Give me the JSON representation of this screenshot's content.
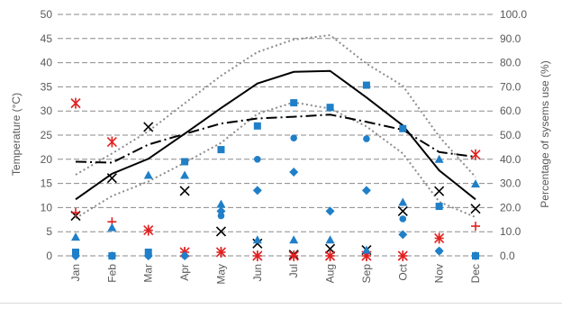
{
  "chart_data": {
    "type": "line",
    "title": "",
    "categories": [
      "Jan",
      "Feb",
      "Mar",
      "Apr",
      "May",
      "Jun",
      "Jul",
      "Aug",
      "Sep",
      "Oct",
      "Nov",
      "Dec"
    ],
    "y_left": {
      "label": "Temperature (°C)",
      "range": [
        0,
        50
      ],
      "ticks": [
        "0",
        "5",
        "10",
        "15",
        "20",
        "25",
        "30",
        "35",
        "40",
        "45",
        "50"
      ]
    },
    "y_right": {
      "label": "Percentage of sysems use (%)",
      "range": [
        0,
        100
      ],
      "ticks": [
        "0.0",
        "10.0",
        "20.0",
        "30.0",
        "40.0",
        "50.0",
        "60.0",
        "70.0",
        "80.0",
        "90.0",
        "100.0"
      ]
    },
    "grid": "horizontal dashed",
    "legend": "none",
    "series": [
      {
        "style": "solid-black",
        "axis": "left",
        "values": [
          11.7,
          17.0,
          20.1,
          25.3,
          30.6,
          35.7,
          38.1,
          38.3,
          32.8,
          27.0,
          17.7,
          11.7
        ]
      },
      {
        "style": "dotted-gray-upper",
        "axis": "left",
        "values": [
          16.8,
          21.2,
          25.8,
          31.6,
          37.3,
          42.2,
          44.8,
          45.7,
          39.8,
          35.2,
          24.7,
          16.3
        ]
      },
      {
        "style": "dotted-gray-lower",
        "axis": "left",
        "values": [
          7.8,
          12.4,
          15.4,
          19.3,
          23.4,
          29.4,
          31.8,
          30.5,
          26.8,
          21.2,
          11.2,
          8.0
        ]
      },
      {
        "style": "dash-dot-black",
        "axis": "right",
        "values": [
          39.0,
          38.6,
          46.1,
          50.5,
          54.8,
          56.9,
          57.6,
          58.5,
          55.5,
          52.2,
          43.0,
          41.0
        ]
      },
      {
        "style": "marker-x-black",
        "axis": "right",
        "values": [
          16.6,
          32.2,
          53.4,
          26.9,
          10.1,
          5.1,
          0.5,
          2.9,
          2.4,
          18.5,
          26.8,
          19.5
        ]
      },
      {
        "style": "marker-asterisk-red",
        "axis": "right",
        "values": [
          63.2,
          47.2,
          10.6,
          1.5,
          1.5,
          0.0,
          0.0,
          0.0,
          0.0,
          0.0,
          7.3,
          41.9
        ]
      },
      {
        "style": "marker-plus-red",
        "axis": "right",
        "values": [
          17.9,
          14.1,
          10.6,
          1.5,
          1.5,
          0.0,
          0.0,
          0.0,
          0.0,
          0.0,
          7.3,
          12.3
        ]
      },
      {
        "style": "marker-square-blue",
        "axis": "right",
        "values": [
          1.5,
          0.0,
          1.5,
          39.0,
          44.0,
          53.8,
          63.4,
          61.5,
          70.7,
          52.7,
          20.5,
          0.0
        ]
      },
      {
        "style": "marker-triangle-blue",
        "axis": "right",
        "values": [
          7.8,
          11.7,
          33.4,
          33.4,
          21.4,
          6.6,
          6.6,
          6.6,
          2.4,
          22.2,
          40.0,
          29.8
        ]
      },
      {
        "style": "marker-diamond-blue",
        "axis": "right",
        "values": [
          0.0,
          0.0,
          0.0,
          0.0,
          18.5,
          27.1,
          34.7,
          18.5,
          27.1,
          8.8,
          2.0,
          0.0
        ]
      },
      {
        "style": "marker-circle-blue",
        "axis": "right",
        "values": [
          0.0,
          0.0,
          0.0,
          0.0,
          16.6,
          40.0,
          48.8,
          61.2,
          48.5,
          15.3,
          2.0,
          0.0
        ]
      }
    ],
    "colors": {
      "black": "#000000",
      "gray": "#8c8c8c",
      "red": "#e02020",
      "blue": "#1f7fc8",
      "grid": "#8a8a8a",
      "text": "#595959"
    }
  }
}
